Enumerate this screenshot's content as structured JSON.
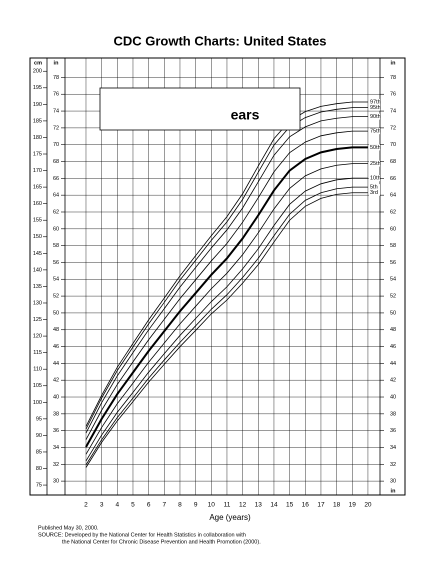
{
  "chart_data": {
    "type": "line",
    "title": "CDC Growth Charts: United States",
    "annotation": "ears",
    "x_label": "Age (years)",
    "y_label": "cm",
    "y2_label": "in",
    "notes": [
      "Published May 30, 2000.",
      "SOURCE: Developed by the National Center for Health Statistics in collaboration with",
      "the National Center for Chronic Disease Prevention and Health Promotion (2000)."
    ],
    "x": [
      2,
      3,
      4,
      5,
      6,
      7,
      8,
      9,
      10,
      11,
      12,
      13,
      14,
      15,
      16,
      17,
      18,
      19,
      20
    ],
    "xlim": [
      0.66,
      20.77
    ],
    "xticks": [
      2,
      3,
      4,
      5,
      6,
      7,
      8,
      9,
      10,
      11,
      12,
      13,
      14,
      15,
      16,
      17,
      18,
      19,
      20
    ],
    "ylim": [
      72,
      204
    ],
    "yticks": [
      75,
      80,
      85,
      90,
      95,
      100,
      105,
      110,
      115,
      120,
      125,
      130,
      135,
      140,
      145,
      150,
      155,
      160,
      165,
      170,
      175,
      180,
      185,
      190,
      195,
      200
    ],
    "y2lim": [
      28.35,
      80.31
    ],
    "y2ticks": [
      30,
      32,
      34,
      36,
      38,
      40,
      42,
      44,
      46,
      48,
      50,
      52,
      54,
      56,
      58,
      60,
      62,
      64,
      66,
      68,
      70,
      72,
      74,
      76,
      78
    ],
    "grid": true,
    "series": [
      {
        "name": "97th",
        "color": "#000000",
        "width": 0.8,
        "values": [
          92.7,
          102.1,
          110.6,
          117.8,
          124.9,
          131.5,
          138.2,
          144.3,
          150.3,
          156.1,
          163.0,
          171.4,
          179.6,
          185.0,
          187.8,
          189.4,
          190.2,
          190.7,
          190.7
        ]
      },
      {
        "name": "95th",
        "color": "#000000",
        "width": 0.8,
        "values": [
          91.9,
          101.3,
          109.6,
          116.7,
          123.7,
          130.2,
          136.9,
          142.9,
          148.9,
          154.5,
          161.3,
          169.5,
          177.7,
          183.2,
          186.0,
          187.7,
          188.5,
          189.0,
          189.0
        ]
      },
      {
        "name": "90th",
        "color": "#000000",
        "width": 0.8,
        "values": [
          90.7,
          99.9,
          108.0,
          115.0,
          121.9,
          128.3,
          134.8,
          140.7,
          146.6,
          152.1,
          158.7,
          166.6,
          174.6,
          180.2,
          183.2,
          185.0,
          185.8,
          186.3,
          186.3
        ]
      },
      {
        "name": "75th",
        "color": "#000000",
        "width": 0.8,
        "values": [
          88.7,
          97.6,
          105.4,
          112.2,
          118.9,
          125.1,
          131.3,
          137.0,
          142.7,
          148.0,
          154.4,
          161.8,
          169.6,
          175.4,
          178.6,
          180.5,
          181.4,
          181.9,
          181.9
        ]
      },
      {
        "name": "50th",
        "color": "#000000",
        "width": 2,
        "values": [
          86.5,
          95.0,
          102.5,
          109.0,
          115.5,
          121.5,
          127.5,
          133.0,
          138.5,
          143.5,
          149.5,
          156.5,
          164.0,
          170.0,
          173.5,
          175.5,
          176.5,
          177.0,
          177.0
        ]
      },
      {
        "name": "25th",
        "color": "#000000",
        "width": 0.8,
        "values": [
          84.3,
          92.4,
          99.6,
          105.8,
          112.1,
          117.9,
          123.7,
          129.0,
          134.3,
          139.0,
          144.6,
          151.2,
          158.4,
          164.6,
          168.4,
          170.5,
          171.6,
          172.1,
          172.1
        ]
      },
      {
        "name": "10th",
        "color": "#000000",
        "width": 0.8,
        "values": [
          82.3,
          90.1,
          97.0,
          103.0,
          109.1,
          114.7,
          120.2,
          125.3,
          130.4,
          134.9,
          140.3,
          146.4,
          153.4,
          159.8,
          163.8,
          166.0,
          167.2,
          167.7,
          167.7
        ]
      },
      {
        "name": "5th",
        "color": "#000000",
        "width": 0.8,
        "values": [
          81.1,
          88.7,
          95.4,
          101.3,
          107.3,
          112.8,
          118.1,
          123.1,
          128.1,
          132.5,
          137.7,
          143.5,
          150.3,
          156.8,
          161.0,
          163.3,
          164.5,
          165.0,
          165.0
        ]
      },
      {
        "name": "3rd",
        "color": "#000000",
        "width": 0.8,
        "values": [
          80.3,
          87.9,
          94.4,
          100.2,
          106.1,
          111.5,
          116.8,
          121.7,
          126.7,
          130.9,
          136.0,
          141.6,
          148.4,
          155.0,
          159.2,
          161.6,
          162.8,
          163.3,
          163.3
        ]
      }
    ]
  }
}
